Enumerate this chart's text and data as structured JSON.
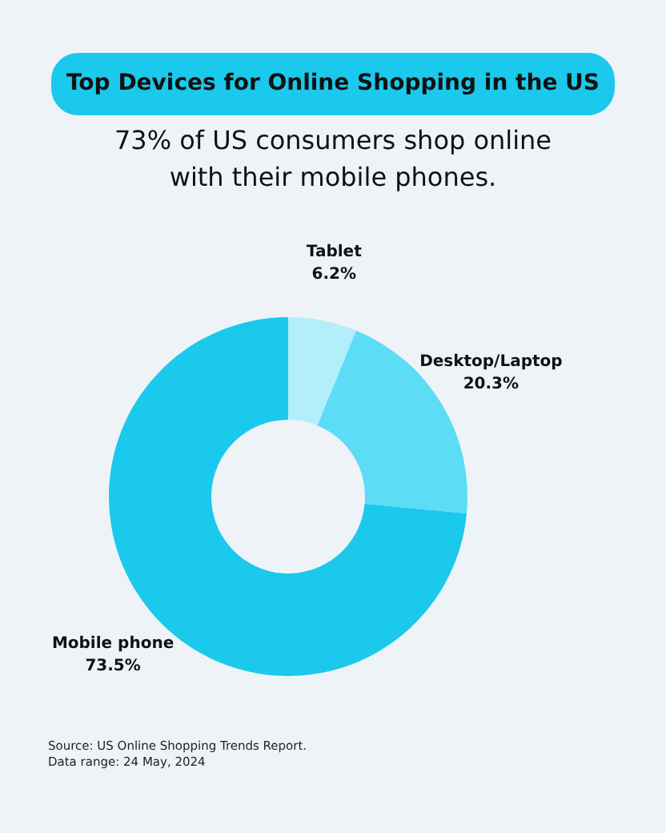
{
  "chart_data": {
    "type": "donut",
    "title": "Top Devices for Online Shopping in the US",
    "subtitle": "73% of US consumers shop online with their mobile phones.",
    "categories": [
      "Tablet",
      "Desktop/Laptop",
      "Mobile phone"
    ],
    "values": [
      6.2,
      20.3,
      73.5
    ],
    "colors": [
      "#b3effb",
      "#5ddcf6",
      "#1ac9ec"
    ],
    "value_labels": [
      "6.2%",
      "20.3%",
      "73.5%"
    ],
    "annotations": [
      "Source: US Online Shopping Trends Report.",
      "Data range: 24 May, 2024"
    ]
  }
}
